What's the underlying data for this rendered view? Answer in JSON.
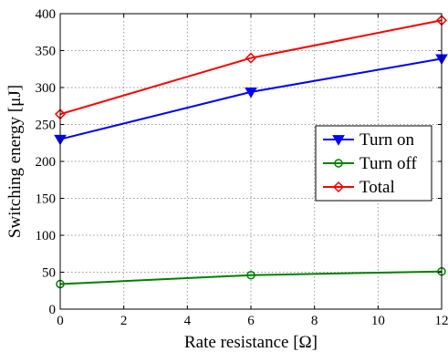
{
  "chart_data": {
    "type": "line",
    "title": "",
    "xlabel": "Rate resistance [Ω]",
    "ylabel": "Switching energy [μJ]",
    "x": [
      0,
      6,
      12
    ],
    "xlim": [
      0,
      12
    ],
    "ylim": [
      0,
      400
    ],
    "xticks": [
      0,
      2,
      4,
      6,
      8,
      10,
      12
    ],
    "yticks": [
      0,
      50,
      100,
      150,
      200,
      250,
      300,
      350,
      400
    ],
    "xtick_labels": [
      "0",
      "2",
      "4",
      "6",
      "8",
      "10",
      "12"
    ],
    "ytick_labels": [
      "0",
      "50",
      "100",
      "150",
      "200",
      "250",
      "300",
      "350",
      "400"
    ],
    "grid": true,
    "legend_position": "right",
    "series": [
      {
        "name": "Turn on",
        "values": [
          230,
          294,
          339
        ],
        "color": "#0000ff",
        "marker": "triangle-down"
      },
      {
        "name": "Turn off",
        "values": [
          34,
          46,
          51
        ],
        "color": "#008000",
        "marker": "circle"
      },
      {
        "name": "Total",
        "values": [
          264,
          340,
          391
        ],
        "color": "#ff0000",
        "marker": "diamond"
      }
    ]
  }
}
